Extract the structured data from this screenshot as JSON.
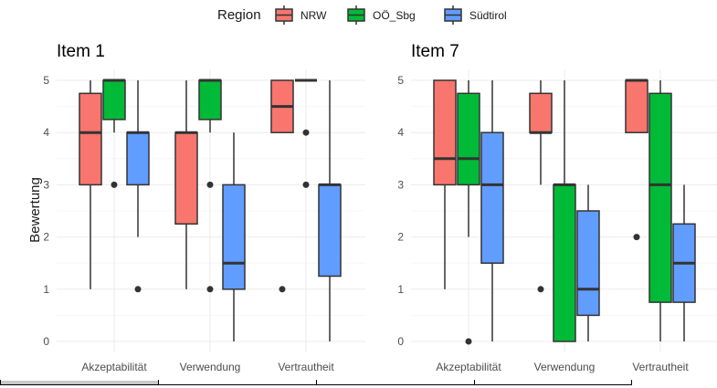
{
  "chart_data": {
    "type": "boxplot",
    "ylabel": "Bewertung",
    "ylim": [
      0,
      5
    ],
    "yticks": [
      "0",
      "1",
      "2",
      "3",
      "4",
      "5"
    ],
    "categories": [
      "Akzeptabilität",
      "Verwendung",
      "Vertrautheit"
    ],
    "legend": {
      "title": "Region",
      "placement": "top",
      "entries": [
        {
          "name": "NRW",
          "color": "#F8766D"
        },
        {
          "name": "OÖ_Sbg",
          "color": "#00BA38"
        },
        {
          "name": "Südtirol",
          "color": "#619CFF"
        }
      ]
    },
    "panels": [
      {
        "title": "Item 1",
        "groups": [
          {
            "category": "Akzeptabilität",
            "series": [
              {
                "name": "NRW",
                "min": 1,
                "q1": 3,
                "median": 4,
                "q3": 4.75,
                "max": 5,
                "outliers": []
              },
              {
                "name": "OÖ_Sbg",
                "min": 4,
                "q1": 4.25,
                "median": 5,
                "q3": 5,
                "max": 5,
                "outliers": [
                  3
                ]
              },
              {
                "name": "Südtirol",
                "min": 2,
                "q1": 3,
                "median": 4,
                "q3": 4,
                "max": 5,
                "outliers": [
                  1
                ]
              }
            ]
          },
          {
            "category": "Verwendung",
            "series": [
              {
                "name": "NRW",
                "min": 1,
                "q1": 2.25,
                "median": 4,
                "q3": 4,
                "max": 5,
                "outliers": []
              },
              {
                "name": "OÖ_Sbg",
                "min": 4,
                "q1": 4.25,
                "median": 5,
                "q3": 5,
                "max": 5,
                "outliers": [
                  3,
                  1
                ]
              },
              {
                "name": "Südtirol",
                "min": 0,
                "q1": 1,
                "median": 1.5,
                "q3": 3,
                "max": 4,
                "outliers": []
              }
            ]
          },
          {
            "category": "Vertrautheit",
            "series": [
              {
                "name": "NRW",
                "min": 4,
                "q1": 4,
                "median": 4.5,
                "q3": 5,
                "max": 5,
                "outliers": [
                  1
                ]
              },
              {
                "name": "OÖ_Sbg",
                "min": 5,
                "q1": 5,
                "median": 5,
                "q3": 5,
                "max": 5,
                "outliers": [
                  4,
                  3
                ]
              },
              {
                "name": "Südtirol",
                "min": 0,
                "q1": 1.25,
                "median": 3,
                "q3": 3,
                "max": 5,
                "outliers": []
              }
            ]
          }
        ]
      },
      {
        "title": "Item 7",
        "groups": [
          {
            "category": "Akzeptabilität",
            "series": [
              {
                "name": "NRW",
                "min": 1,
                "q1": 3,
                "median": 3.5,
                "q3": 5,
                "max": 5,
                "outliers": []
              },
              {
                "name": "OÖ_Sbg",
                "min": 2,
                "q1": 3,
                "median": 3.5,
                "q3": 4.75,
                "max": 5,
                "outliers": [
                  0
                ]
              },
              {
                "name": "Südtirol",
                "min": 0,
                "q1": 1.5,
                "median": 3,
                "q3": 4,
                "max": 5,
                "outliers": []
              }
            ]
          },
          {
            "category": "Verwendung",
            "series": [
              {
                "name": "NRW",
                "min": 3,
                "q1": 4,
                "median": 4,
                "q3": 4.75,
                "max": 5,
                "outliers": [
                  1
                ]
              },
              {
                "name": "OÖ_Sbg",
                "min": 0,
                "q1": 0,
                "median": 3,
                "q3": 3,
                "max": 5,
                "outliers": []
              },
              {
                "name": "Südtirol",
                "min": 0,
                "q1": 0.5,
                "median": 1,
                "q3": 2.5,
                "max": 3,
                "outliers": []
              }
            ]
          },
          {
            "category": "Vertrautheit",
            "series": [
              {
                "name": "NRW",
                "min": 4,
                "q1": 4,
                "median": 5,
                "q3": 5,
                "max": 5,
                "outliers": [
                  2
                ]
              },
              {
                "name": "OÖ_Sbg",
                "min": 0,
                "q1": 0.75,
                "median": 3,
                "q3": 4.75,
                "max": 5,
                "outliers": []
              },
              {
                "name": "Südtirol",
                "min": 0,
                "q1": 0.75,
                "median": 1.5,
                "q3": 2.25,
                "max": 3,
                "outliers": []
              }
            ]
          }
        ]
      }
    ]
  }
}
